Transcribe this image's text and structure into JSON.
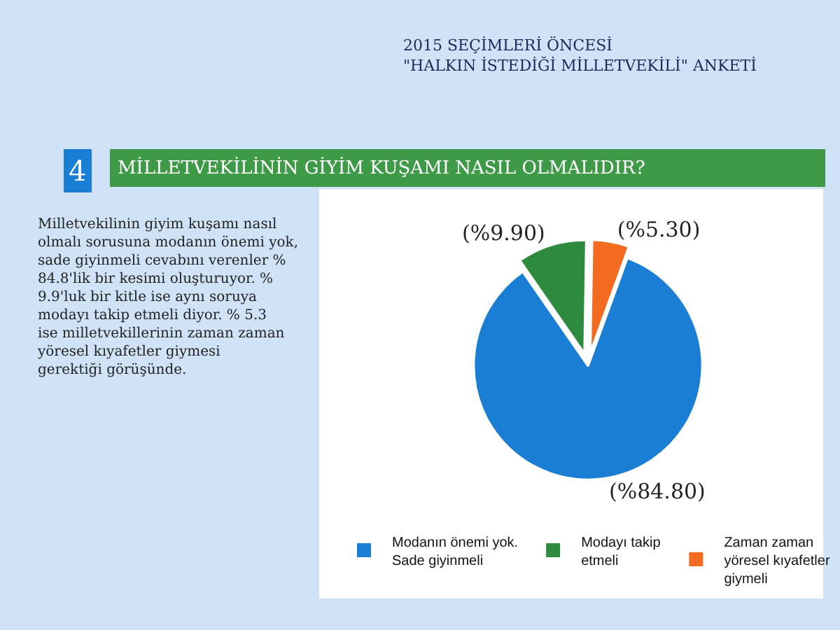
{
  "chart_data": {
    "type": "pie",
    "title": "2015 SEÇİMLERİ ÖNCESİ \"HALKIN İSTEDİĞİ MİLLETVEKİLİ\" ANKETİ",
    "subtitle": "MİLLETVEKİLİNİN GİYİM KUŞAMI NASIL OLMALIDIR?",
    "annotations": [
      "4",
      "Milletvekilinin giyim kuşamı nasıl olmalı sorusuna modanın önemi yok, sade giyinmeli cevabını verenler % 84.8'lik bir kesimi oluşturuyor. % 9.9'luk bir kitle ise aynı soruya modayı takip etmeli diyor. % 5.3 ise milletvekillerinin zaman zaman yöresel kıyafetler giymesi gerektiği görüşünde."
    ],
    "categories": [
      "Modanın önemi yok. Sade giyinmeli",
      "Modayı takip etmeli",
      "Zaman zaman yöresel kıyafetler giymeli"
    ],
    "values": [
      84.8,
      9.9,
      5.3
    ],
    "colors": [
      "#1a7fd4",
      "#2e8b3e",
      "#f26b21"
    ],
    "value_labels": [
      "(%84.80)",
      "(%9.90)",
      "(%5.30)"
    ],
    "legend": "bottom"
  }
}
